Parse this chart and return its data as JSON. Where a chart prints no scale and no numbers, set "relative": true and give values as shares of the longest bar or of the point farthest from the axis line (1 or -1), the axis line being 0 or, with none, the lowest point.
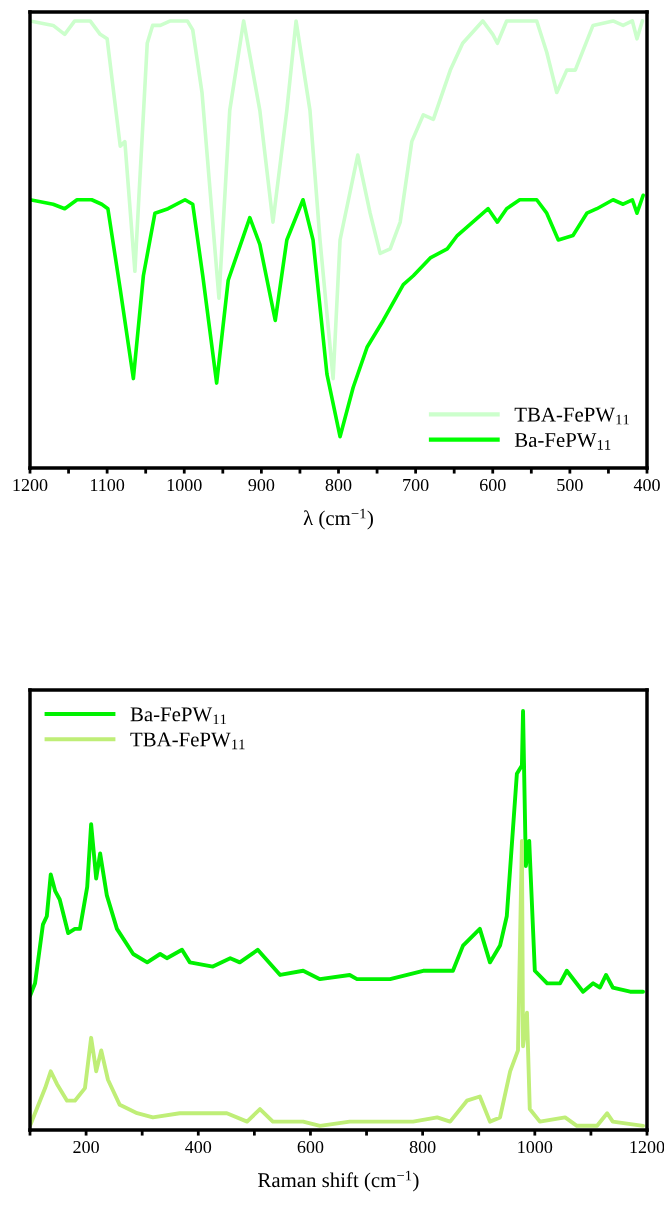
{
  "chart_data": [
    {
      "type": "line",
      "xlabel": "λ (cm$^{−1}$)",
      "relative": true,
      "tick_labels": "x",
      "legend": "bottom right",
      "grid": false,
      "xlim": [
        1200,
        400
      ],
      "xticks": [
        1200,
        {
          "value": 1150,
          "label": null
        },
        1100,
        {
          "value": 1050,
          "label": null
        },
        1000,
        {
          "value": 950,
          "label": null
        },
        900,
        {
          "value": 850,
          "label": null
        },
        800,
        {
          "value": 750,
          "label": null
        },
        700,
        {
          "value": 650,
          "label": null
        },
        600,
        {
          "value": 550,
          "label": null
        },
        500,
        {
          "value": 450,
          "label": null
        },
        400
      ],
      "series": [
        {
          "name": "TBA-FePW$_{11}$",
          "color": "#ccffcc",
          "x": [
            1200,
            1170,
            1155,
            1142,
            1122,
            1109,
            1100,
            1083,
            1077,
            1064,
            1048,
            1041,
            1031,
            1018,
            996,
            989,
            977,
            955,
            941,
            923,
            902,
            885,
            867,
            855,
            837,
            824,
            807,
            798,
            775,
            759,
            746,
            733,
            720,
            705,
            690,
            677,
            655,
            639,
            613,
            600,
            594,
            582,
            543,
            530,
            517,
            504,
            493,
            470,
            444,
            431,
            419,
            413,
            406
          ],
          "values": [
            1.0,
            0.99,
            0.97,
            1.0,
            1.0,
            0.97,
            0.96,
            0.72,
            0.73,
            0.44,
            0.95,
            0.99,
            0.99,
            1.0,
            1.0,
            0.98,
            0.84,
            0.38,
            0.8,
            1.0,
            0.8,
            0.55,
            0.8,
            1.0,
            0.8,
            0.51,
            0.2,
            0.51,
            0.7,
            0.57,
            0.48,
            0.49,
            0.55,
            0.73,
            0.79,
            0.78,
            0.89,
            0.95,
            1.0,
            0.97,
            0.95,
            1.0,
            1.0,
            0.93,
            0.84,
            0.89,
            0.89,
            0.99,
            1.0,
            0.99,
            1.0,
            0.96,
            1.0
          ]
        },
        {
          "name": "Ba-FePW$_{11}$",
          "color": "#00ff00",
          "x": [
            1200,
            1170,
            1155,
            1139,
            1120,
            1107,
            1099,
            1083,
            1066,
            1053,
            1038,
            1021,
            999,
            989,
            976,
            958,
            943,
            915,
            902,
            882,
            867,
            846,
            833,
            815,
            798,
            781,
            763,
            742,
            716,
            703,
            681,
            659,
            646,
            626,
            606,
            594,
            582,
            565,
            543,
            530,
            515,
            496,
            478,
            465,
            444,
            431,
            419,
            413,
            405
          ],
          "values": [
            0.6,
            0.59,
            0.58,
            0.6,
            0.6,
            0.59,
            0.58,
            0.4,
            0.2,
            0.43,
            0.57,
            0.58,
            0.6,
            0.59,
            0.43,
            0.19,
            0.42,
            0.56,
            0.5,
            0.33,
            0.51,
            0.6,
            0.51,
            0.21,
            0.07,
            0.18,
            0.27,
            0.33,
            0.41,
            0.43,
            0.47,
            0.49,
            0.52,
            0.55,
            0.58,
            0.55,
            0.58,
            0.6,
            0.6,
            0.57,
            0.51,
            0.52,
            0.57,
            0.58,
            0.6,
            0.59,
            0.6,
            0.57,
            0.61
          ]
        }
      ]
    },
    {
      "type": "line",
      "xlabel": "Raman shift (cm$^{−1}$)",
      "relative": true,
      "tick_labels": "x",
      "legend": "top left",
      "grid": false,
      "xlim": [
        100,
        1200
      ],
      "xticks": [
        {
          "value": 100,
          "label": null
        },
        200,
        {
          "value": 300,
          "label": null
        },
        400,
        {
          "value": 500,
          "label": null
        },
        600,
        {
          "value": 700,
          "label": null
        },
        800,
        {
          "value": 900,
          "label": null
        },
        1000,
        {
          "value": 1100,
          "label": null
        },
        1200
      ],
      "series": [
        {
          "name": "Ba-FePW$_{11}$",
          "color": "#00f000",
          "x": [
            100,
            109,
            123,
            130,
            137,
            145,
            153,
            168,
            180,
            189,
            202,
            209,
            218,
            225,
            237,
            255,
            284,
            309,
            332,
            344,
            371,
            385,
            426,
            457,
            474,
            506,
            546,
            587,
            617,
            670,
            683,
            742,
            801,
            854,
            872,
            902,
            920,
            938,
            950,
            968,
            977,
            979,
            984,
            990,
            1000,
            1022,
            1045,
            1057,
            1086,
            1104,
            1116,
            1127,
            1139,
            1170,
            1193
          ],
          "values": [
            0.32,
            0.35,
            0.49,
            0.51,
            0.61,
            0.57,
            0.55,
            0.47,
            0.48,
            0.48,
            0.58,
            0.73,
            0.6,
            0.66,
            0.56,
            0.48,
            0.42,
            0.4,
            0.42,
            0.41,
            0.43,
            0.4,
            0.39,
            0.41,
            0.4,
            0.43,
            0.37,
            0.38,
            0.36,
            0.37,
            0.36,
            0.36,
            0.38,
            0.38,
            0.44,
            0.48,
            0.4,
            0.44,
            0.51,
            0.85,
            0.87,
            1.0,
            0.63,
            0.69,
            0.38,
            0.35,
            0.35,
            0.38,
            0.33,
            0.35,
            0.34,
            0.37,
            0.34,
            0.33,
            0.33
          ]
        },
        {
          "name": "TBA-FePW$_{11}$",
          "color": "#bfee77",
          "x": [
            100,
            127,
            137,
            148,
            166,
            180,
            198,
            209,
            218,
            227,
            239,
            260,
            291,
            319,
            367,
            398,
            451,
            487,
            510,
            533,
            587,
            617,
            670,
            694,
            783,
            826,
            849,
            879,
            902,
            920,
            938,
            956,
            970,
            977,
            979,
            986,
            991,
            1009,
            1054,
            1075,
            1111,
            1129,
            1139,
            1193
          ],
          "values": [
            0.01,
            0.1,
            0.14,
            0.11,
            0.07,
            0.07,
            0.1,
            0.22,
            0.14,
            0.19,
            0.12,
            0.06,
            0.04,
            0.03,
            0.04,
            0.04,
            0.04,
            0.02,
            0.05,
            0.02,
            0.02,
            0.01,
            0.02,
            0.02,
            0.02,
            0.03,
            0.02,
            0.07,
            0.08,
            0.02,
            0.03,
            0.14,
            0.19,
            0.69,
            0.2,
            0.28,
            0.05,
            0.02,
            0.03,
            0.01,
            0.01,
            0.04,
            0.02,
            0.01
          ]
        }
      ]
    }
  ]
}
